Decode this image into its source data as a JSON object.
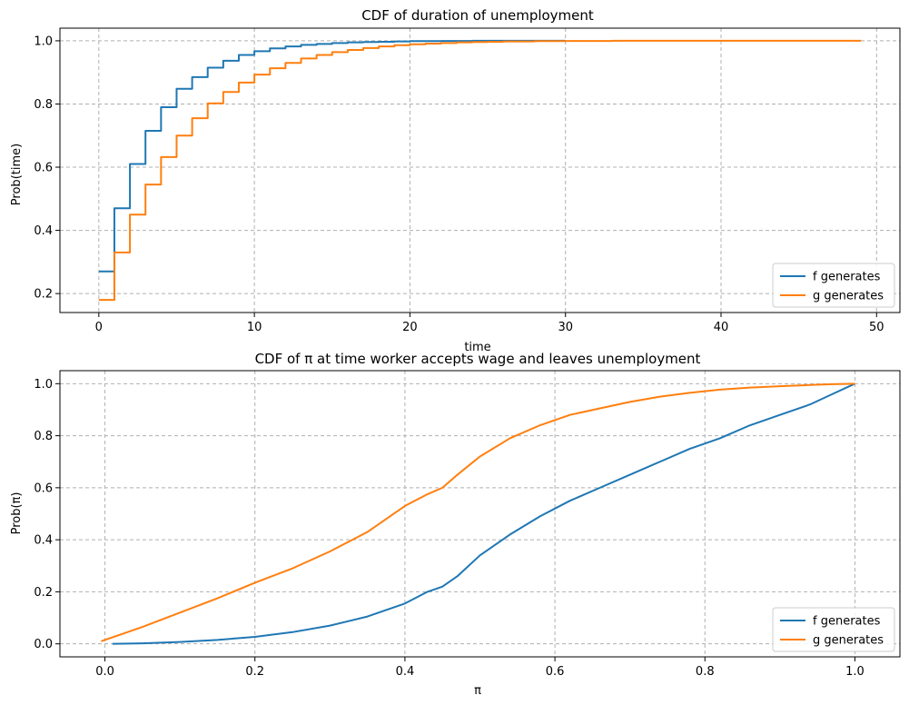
{
  "chart_data": [
    {
      "type": "line",
      "title": "CDF of duration of unemployment",
      "xlabel": "time",
      "ylabel": "Prob(time)",
      "xlim": [
        -2.5,
        51.5
      ],
      "ylim": [
        0.14,
        1.04
      ],
      "xticks": [
        0,
        10,
        20,
        30,
        40,
        50
      ],
      "yticks": [
        0.2,
        0.4,
        0.6,
        0.8,
        1.0
      ],
      "xtick_labels": [
        "0",
        "10",
        "20",
        "30",
        "40",
        "50"
      ],
      "ytick_labels": [
        "0.2",
        "0.4",
        "0.6",
        "0.8",
        "1.0"
      ],
      "grid": true,
      "legend_position": "lower-right",
      "step": true,
      "series": [
        {
          "name": "f generates",
          "color": "#1f77b4",
          "x": [
            0,
            1,
            2,
            3,
            4,
            5,
            6,
            7,
            8,
            9,
            10,
            11,
            12,
            13,
            14,
            15,
            16,
            17,
            18,
            19,
            20,
            22,
            24,
            26,
            28,
            30
          ],
          "y": [
            0.27,
            0.47,
            0.61,
            0.715,
            0.79,
            0.848,
            0.885,
            0.915,
            0.937,
            0.955,
            0.967,
            0.976,
            0.982,
            0.987,
            0.99,
            0.993,
            0.995,
            0.996,
            0.997,
            0.998,
            0.999,
            0.9995,
            1.0,
            1.0,
            1.0,
            1.0
          ]
        },
        {
          "name": "g generates",
          "color": "#ff7f0e",
          "x": [
            0,
            1,
            2,
            3,
            4,
            5,
            6,
            7,
            8,
            9,
            10,
            11,
            12,
            13,
            14,
            15,
            16,
            17,
            18,
            19,
            20,
            21,
            22,
            23,
            24,
            25,
            26,
            28,
            30,
            33,
            36,
            40,
            45,
            49
          ],
          "y": [
            0.18,
            0.33,
            0.45,
            0.545,
            0.632,
            0.7,
            0.755,
            0.802,
            0.838,
            0.868,
            0.893,
            0.913,
            0.93,
            0.944,
            0.955,
            0.964,
            0.971,
            0.977,
            0.982,
            0.986,
            0.989,
            0.991,
            0.993,
            0.995,
            0.996,
            0.997,
            0.998,
            0.999,
            0.9995,
            1.0,
            1.0,
            1.0,
            1.0,
            1.0
          ]
        }
      ]
    },
    {
      "type": "line",
      "title": "CDF of π at time worker accepts wage and leaves unemployment",
      "xlabel": "π",
      "ylabel": "Prob(π)",
      "xlim": [
        -0.06,
        1.06
      ],
      "ylim": [
        -0.05,
        1.05
      ],
      "xticks": [
        0,
        0.2,
        0.4,
        0.6,
        0.8,
        1.0
      ],
      "yticks": [
        0,
        0.2,
        0.4,
        0.6,
        0.8,
        1.0
      ],
      "xtick_labels": [
        "0.0",
        "0.2",
        "0.4",
        "0.6",
        "0.8",
        "1.0"
      ],
      "ytick_labels": [
        "0.0",
        "0.2",
        "0.4",
        "0.6",
        "0.8",
        "1.0"
      ],
      "grid": true,
      "legend_position": "lower-right",
      "step": false,
      "series": [
        {
          "name": "f generates",
          "color": "#1f77b4",
          "x": [
            0.01,
            0.05,
            0.1,
            0.15,
            0.2,
            0.25,
            0.3,
            0.35,
            0.4,
            0.43,
            0.45,
            0.47,
            0.5,
            0.54,
            0.58,
            0.62,
            0.66,
            0.7,
            0.74,
            0.78,
            0.82,
            0.86,
            0.9,
            0.94,
            0.97,
            1.0
          ],
          "y": [
            0.0,
            0.002,
            0.007,
            0.015,
            0.027,
            0.045,
            0.07,
            0.105,
            0.155,
            0.2,
            0.22,
            0.26,
            0.34,
            0.42,
            0.49,
            0.55,
            0.6,
            0.65,
            0.7,
            0.75,
            0.79,
            0.84,
            0.88,
            0.92,
            0.96,
            1.0
          ]
        },
        {
          "name": "g generates",
          "color": "#ff7f0e",
          "x": [
            -0.005,
            0.02,
            0.05,
            0.1,
            0.15,
            0.2,
            0.25,
            0.3,
            0.35,
            0.4,
            0.43,
            0.45,
            0.47,
            0.5,
            0.54,
            0.58,
            0.62,
            0.66,
            0.7,
            0.74,
            0.78,
            0.82,
            0.86,
            0.9,
            0.94,
            0.97,
            1.0
          ],
          "y": [
            0.01,
            0.035,
            0.065,
            0.12,
            0.175,
            0.235,
            0.29,
            0.355,
            0.43,
            0.53,
            0.575,
            0.6,
            0.65,
            0.72,
            0.79,
            0.84,
            0.88,
            0.905,
            0.93,
            0.95,
            0.965,
            0.977,
            0.985,
            0.99,
            0.995,
            0.998,
            1.0
          ]
        }
      ]
    }
  ]
}
